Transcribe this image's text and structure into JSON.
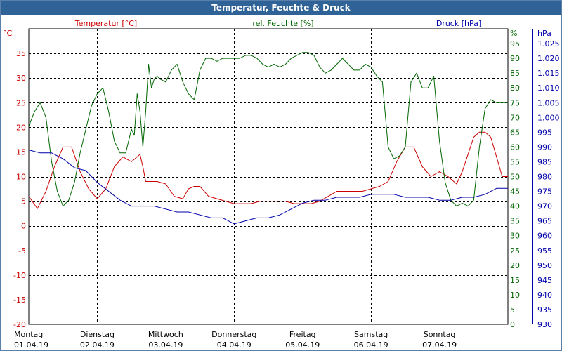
{
  "window": {
    "title": "Temperatur, Feuchte & Druck"
  },
  "chart_data": {
    "type": "line",
    "title": "Temperatur, Feuchte & Druck",
    "colors": {
      "temp": "#cc0000",
      "hum": "#006600",
      "press": "#0000aa",
      "grid": "#000000"
    },
    "grid": true,
    "axes": {
      "temp": {
        "label": "Temperatur [°C]",
        "unit_label": "°C",
        "ylim": [
          -20,
          40
        ],
        "ticks": [
          "-20",
          "-15",
          "-10",
          "-5",
          "0",
          "5",
          "10",
          "15",
          "20",
          "25",
          "30",
          "35"
        ]
      },
      "hum": {
        "label": "rel. Feuchte [%]",
        "unit_label": "%",
        "ylim": [
          0,
          100
        ],
        "ticks": [
          "0",
          "5",
          "10",
          "15",
          "20",
          "25",
          "30",
          "35",
          "40",
          "45",
          "50",
          "55",
          "60",
          "65",
          "70",
          "75",
          "80",
          "85",
          "90",
          "95"
        ]
      },
      "press": {
        "label": "Druck [hPa]",
        "unit_label": "hPa",
        "ylim": [
          930,
          1030
        ],
        "ticks": [
          "930",
          "935",
          "940",
          "945",
          "950",
          "955",
          "960",
          "965",
          "970",
          "975",
          "980",
          "985",
          "990",
          "995",
          "1.000",
          "1.005",
          "1.010",
          "1.015",
          "1.020",
          "1.025"
        ]
      }
    },
    "x_range_hours": [
      0,
      168
    ],
    "days": [
      {
        "name": "Montag",
        "date": "01.04.19"
      },
      {
        "name": "Dienstag",
        "date": "02.04.19"
      },
      {
        "name": "Mittwoch",
        "date": "03.04.19"
      },
      {
        "name": "Donnerstag",
        "date": "04.04.19"
      },
      {
        "name": "Freitag",
        "date": "05.04.19"
      },
      {
        "name": "Samstag",
        "date": "06.04.19"
      },
      {
        "name": "Sonntag",
        "date": "07.04.19"
      }
    ],
    "series": [
      {
        "name": "Temperatur",
        "axis": "temp",
        "x": [
          0,
          3,
          6,
          9,
          12,
          15,
          18,
          21,
          24,
          27,
          30,
          33,
          36,
          38,
          39,
          40,
          41,
          42,
          43,
          44,
          45,
          48,
          51,
          54,
          56,
          58,
          60,
          63,
          66,
          69,
          72,
          75,
          78,
          81,
          84,
          87,
          90,
          93,
          96,
          99,
          102,
          105,
          108,
          111,
          114,
          117,
          120,
          123,
          126,
          129,
          132,
          135,
          138,
          141,
          144,
          147,
          150,
          152,
          154,
          156,
          158,
          160,
          162,
          164,
          166,
          168
        ],
        "values": [
          6,
          3.5,
          7,
          12,
          16,
          16,
          11,
          7.5,
          5.5,
          7.5,
          12,
          14,
          13,
          14,
          14.5,
          12,
          9,
          9,
          9,
          9,
          9,
          8.5,
          6,
          5.5,
          7.5,
          8,
          8,
          6,
          5.5,
          5,
          4.5,
          4.5,
          4.5,
          5,
          5,
          5,
          5,
          4.5,
          4.5,
          4.5,
          5,
          6,
          7,
          7,
          7,
          7,
          7.5,
          8,
          9,
          13,
          16,
          16,
          12,
          10,
          11,
          10,
          8.5,
          11,
          14.5,
          18,
          19,
          19,
          18,
          14,
          10,
          10
        ]
      },
      {
        "name": "rel. Feuchte",
        "axis": "hum",
        "x": [
          0,
          2,
          4,
          6,
          8,
          10,
          12,
          14,
          16,
          18,
          20,
          22,
          24,
          26,
          28,
          30,
          32,
          34,
          36,
          37,
          38,
          39,
          40,
          41,
          42,
          43,
          44,
          45,
          46,
          48,
          50,
          52,
          54,
          56,
          58,
          60,
          62,
          64,
          66,
          68,
          70,
          72,
          74,
          76,
          78,
          80,
          82,
          84,
          86,
          88,
          90,
          92,
          94,
          96,
          98,
          100,
          102,
          104,
          106,
          108,
          110,
          112,
          114,
          116,
          118,
          120,
          122,
          124,
          126,
          128,
          130,
          132,
          134,
          136,
          138,
          140,
          142,
          144,
          146,
          148,
          150,
          152,
          154,
          156,
          158,
          160,
          162,
          164,
          166,
          168
        ],
        "values": [
          67,
          72,
          75,
          70,
          55,
          45,
          40,
          42,
          48,
          58,
          66,
          74,
          78,
          80,
          72,
          62,
          58,
          58,
          66,
          64,
          78,
          72,
          60,
          72,
          88,
          80,
          83,
          84,
          83,
          82,
          86,
          88,
          82,
          78,
          76,
          86,
          90,
          90,
          89,
          90,
          90,
          90,
          90,
          91,
          91,
          90,
          88,
          87,
          88,
          87,
          88,
          90,
          91,
          92,
          92,
          91,
          87,
          85,
          86,
          88,
          90,
          88,
          86,
          86,
          88,
          87,
          84,
          82,
          60,
          56,
          57,
          60,
          82,
          85,
          80,
          80,
          84,
          62,
          48,
          42,
          40,
          41,
          40,
          42,
          60,
          73,
          76,
          75,
          75,
          75
        ]
      },
      {
        "name": "Druck",
        "axis": "press",
        "x": [
          0,
          4,
          8,
          12,
          16,
          20,
          24,
          28,
          32,
          36,
          40,
          44,
          48,
          52,
          56,
          60,
          64,
          68,
          72,
          76,
          80,
          84,
          88,
          92,
          96,
          100,
          104,
          108,
          112,
          116,
          120,
          124,
          128,
          132,
          136,
          140,
          144,
          148,
          152,
          156,
          160,
          164,
          168
        ],
        "values": [
          989,
          988,
          988,
          986,
          983,
          982,
          978,
          975,
          972,
          970,
          970,
          970,
          969,
          968,
          968,
          967,
          966,
          966,
          964,
          965,
          966,
          966,
          967,
          969,
          971,
          972,
          972,
          973,
          973,
          973,
          974,
          974,
          974,
          973,
          973,
          973,
          972,
          972,
          973,
          973,
          974,
          976,
          976
        ]
      }
    ]
  }
}
